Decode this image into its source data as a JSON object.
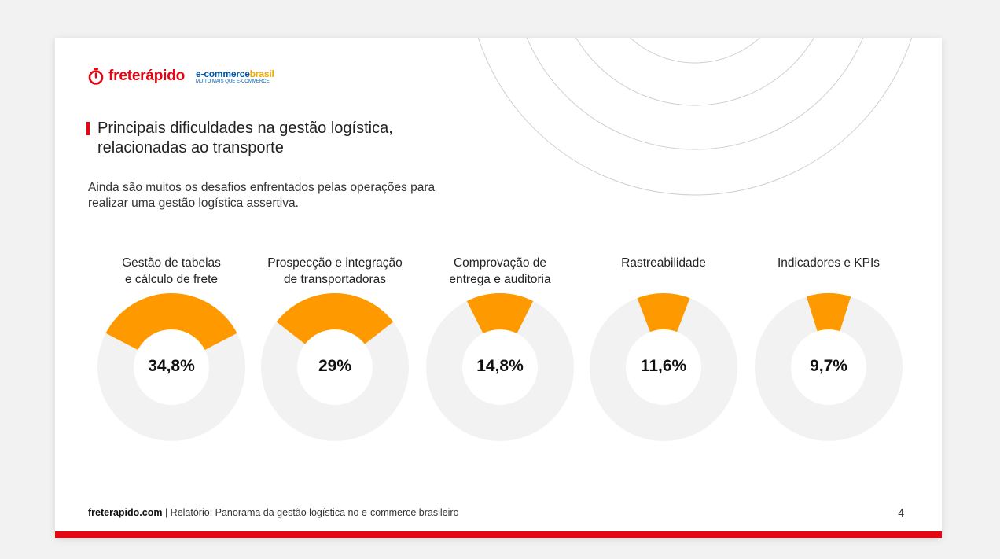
{
  "header": {
    "brand_primary": "freterápido",
    "brand_secondary_a": "e-commerce",
    "brand_secondary_b": "brasil",
    "brand_secondary_tagline": "MUITO MAIS QUE E-COMMERCE"
  },
  "title_lines": [
    "Principais dificuldades na gestão logística,",
    "relacionadas ao transporte"
  ],
  "subtitle_lines": [
    "Ainda são muitos os desafios enfrentados pelas operações para",
    "realizar uma gestão logística assertiva."
  ],
  "chart_data": {
    "type": "donut",
    "unit": "%",
    "items": [
      {
        "label_lines": [
          "Gestão de tabelas",
          "e cálculo de frete"
        ],
        "value": 34.8,
        "display": "34,8%"
      },
      {
        "label_lines": [
          "Prospecção e integração",
          "de transportadoras"
        ],
        "value": 29,
        "display": "29%"
      },
      {
        "label_lines": [
          "Comprovação de",
          "entrega e auditoria"
        ],
        "value": 14.8,
        "display": "14,8%"
      },
      {
        "label_lines": [
          "Rastreabilidade"
        ],
        "value": 11.6,
        "display": "11,6%"
      },
      {
        "label_lines": [
          "Indicadores e KPIs"
        ],
        "value": 9.7,
        "display": "9,7%"
      }
    ],
    "colors": {
      "filled": "#ff9900",
      "track": "#f2f2f2"
    }
  },
  "footer": {
    "site": "freterapido.com",
    "separator": " | ",
    "report": "Relatório: Panorama da gestão logística no e-commerce brasileiro",
    "page_number": "4"
  },
  "colors": {
    "accent": "#e30613",
    "chart_fill": "#ff9900",
    "track": "#f2f2f2"
  }
}
